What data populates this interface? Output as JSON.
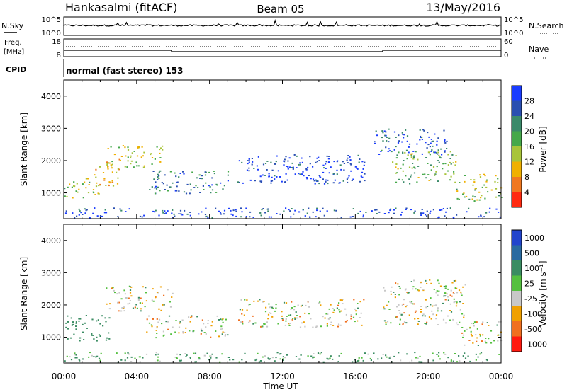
{
  "header": {
    "station": "Hankasalmi (fitACF)",
    "beam": "Beam 05",
    "date": "13/May/2016"
  },
  "noise_panel": {
    "left_label": "N.Sky",
    "left_ticks": [
      "10^5",
      "10^0"
    ],
    "right_ticks": [
      "10^5",
      "10^0"
    ],
    "right_label": "N.Search"
  },
  "freq_panel": {
    "left_label_1": "Freq.",
    "left_label_2": "[MHz]",
    "left_ticks": [
      "18",
      "8"
    ],
    "right_ticks": [
      "60",
      "0"
    ],
    "right_label": "Nave"
  },
  "cpid_panel": {
    "label": "CPID",
    "text": "normal (fast stereo) 153"
  },
  "time_axis": {
    "label": "Time UT",
    "ticks": [
      "00:00",
      "04:00",
      "08:00",
      "12:00",
      "16:00",
      "20:00",
      "00:00"
    ]
  },
  "chart_data": [
    {
      "type": "heatmap",
      "title": "",
      "xlabel": "",
      "ylabel": "Slant Range [km]",
      "x_range_hours": [
        0,
        24
      ],
      "ylim": [
        200,
        4500
      ],
      "y_ticks": [
        1000,
        2000,
        3000,
        4000
      ],
      "colorbar": {
        "label": "Power [dB]",
        "ticks": [
          "4",
          "8",
          "12",
          "16",
          "20",
          "24",
          "28"
        ],
        "colors": [
          "#1a3cff",
          "#2a4fb0",
          "#3b8a6a",
          "#45a84a",
          "#a8c43a",
          "#f0b000",
          "#f07820",
          "#ff2a10"
        ],
        "range": [
          0,
          30
        ]
      },
      "regions": [
        {
          "t": [
            0.0,
            2.0
          ],
          "r": [
            850,
            1500
          ],
          "level": 0.55
        },
        {
          "t": [
            1.5,
            3.0
          ],
          "r": [
            1200,
            1900
          ],
          "level": 0.7
        },
        {
          "t": [
            2.3,
            5.5
          ],
          "r": [
            1800,
            2500
          ],
          "level": 0.6
        },
        {
          "t": [
            4.5,
            9.0
          ],
          "r": [
            1000,
            1700
          ],
          "level": 0.25
        },
        {
          "t": [
            9.5,
            16.5
          ],
          "r": [
            1300,
            2200
          ],
          "level": 0.05
        },
        {
          "t": [
            17.0,
            21.0
          ],
          "r": [
            2200,
            3000
          ],
          "level": 0.15
        },
        {
          "t": [
            18.0,
            21.5
          ],
          "r": [
            1300,
            2300
          ],
          "level": 0.45
        },
        {
          "t": [
            21.5,
            24.0
          ],
          "r": [
            700,
            1600
          ],
          "level": 0.55
        },
        {
          "t": [
            0.0,
            24.0
          ],
          "r": [
            250,
            550
          ],
          "level": 0.1
        }
      ]
    },
    {
      "type": "heatmap",
      "title": "",
      "xlabel": "Time UT",
      "ylabel": "Slant Range [km]",
      "x_range_hours": [
        0,
        24
      ],
      "ylim": [
        200,
        4500
      ],
      "y_ticks": [
        1000,
        2000,
        3000,
        4000
      ],
      "colorbar": {
        "label": "Velocity [m s⁻¹]",
        "ticks": [
          "1000",
          "500",
          "100",
          "25",
          "-25",
          "-100",
          "-500",
          "-1000"
        ],
        "colors": [
          "#2244cc",
          "#2a6aa0",
          "#3a8c62",
          "#55c040",
          "#c8c8c8",
          "#f0a000",
          "#f07020",
          "#ff1a10"
        ],
        "range": [
          -1000,
          1000
        ]
      },
      "regions": [
        {
          "t": [
            0.0,
            2.5
          ],
          "r": [
            900,
            1700
          ],
          "velocity": 150
        },
        {
          "t": [
            2.3,
            6.0
          ],
          "r": [
            1800,
            2600
          ],
          "velocity": 0
        },
        {
          "t": [
            4.5,
            9.0
          ],
          "r": [
            1000,
            1700
          ],
          "velocity": 0
        },
        {
          "t": [
            9.5,
            16.5
          ],
          "r": [
            1300,
            2200
          ],
          "velocity": 0
        },
        {
          "t": [
            17.5,
            22.0
          ],
          "r": [
            1400,
            2800
          ],
          "velocity": 0
        },
        {
          "t": [
            21.5,
            24.0
          ],
          "r": [
            700,
            1500
          ],
          "velocity": 0
        },
        {
          "t": [
            0.0,
            24.0
          ],
          "r": [
            250,
            550
          ],
          "velocity": 80
        }
      ]
    }
  ]
}
